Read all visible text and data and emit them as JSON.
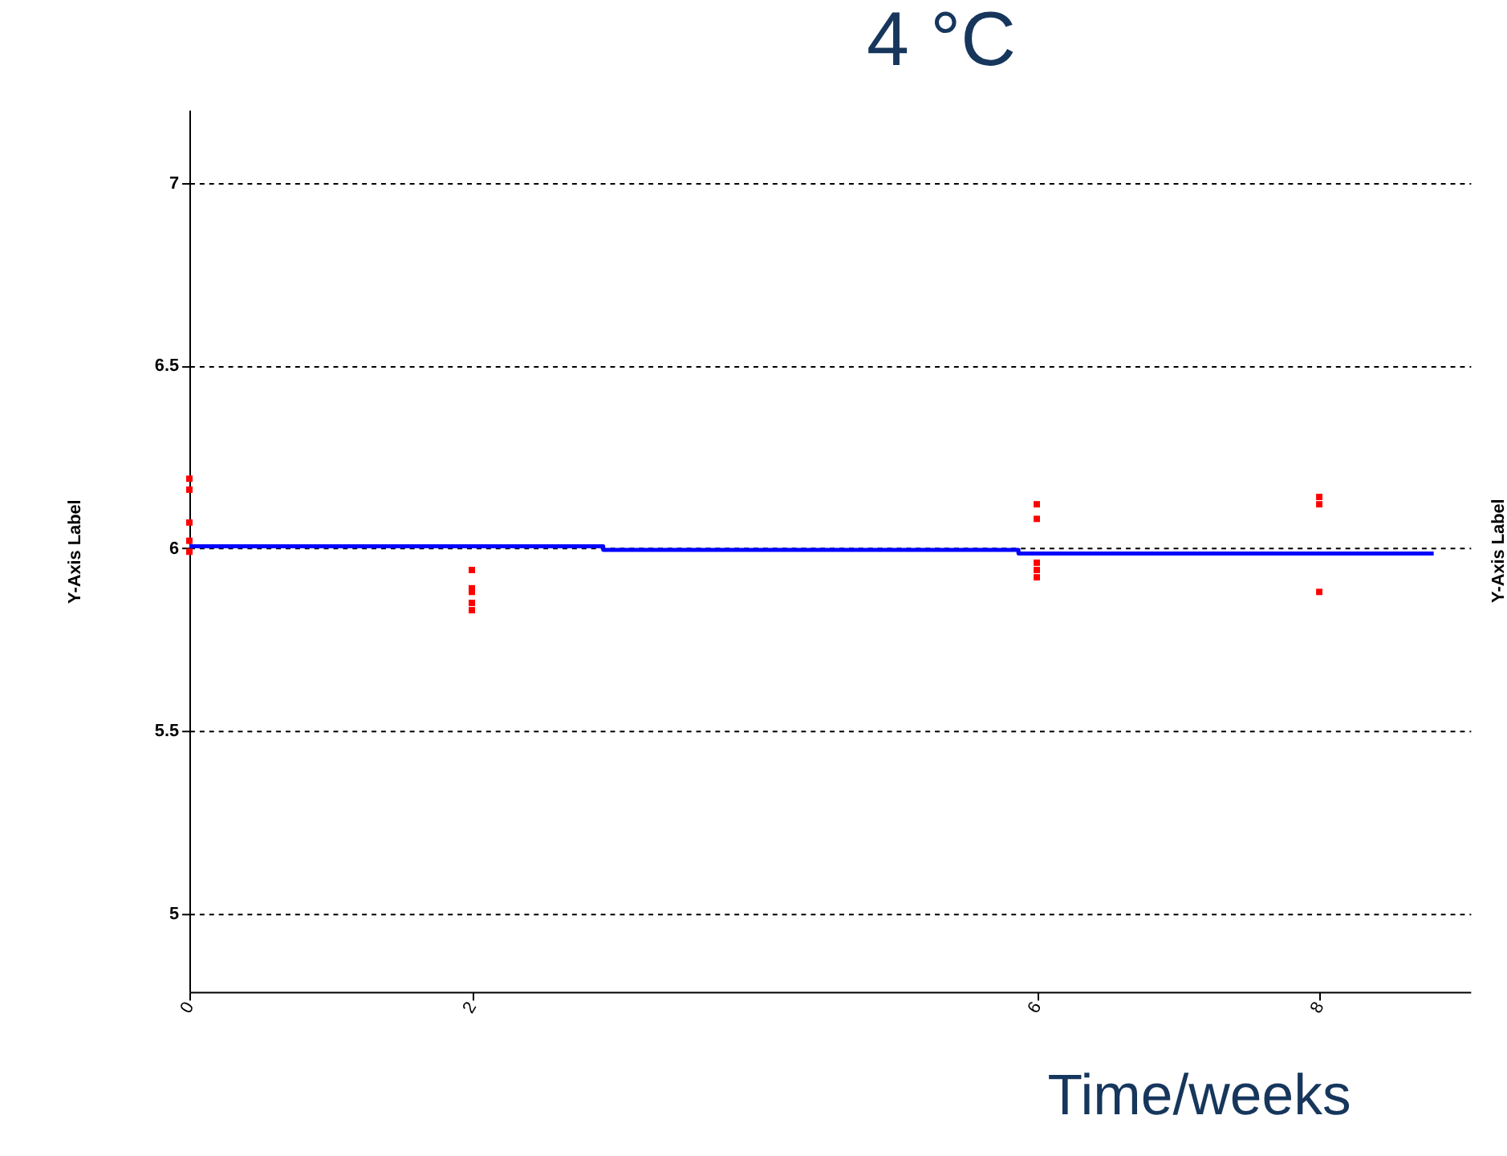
{
  "chart_data": {
    "type": "scatter",
    "title": "4 °C",
    "xlabel": "Time/weeks",
    "ylabel": "Y-Axis Label",
    "y2label": "Y-Axis Label",
    "xlim": [
      0,
      9.07
    ],
    "xticks": [
      0,
      2,
      6,
      8
    ],
    "ylim": [
      4.785,
      7.2
    ],
    "yticks": [
      5,
      5.5,
      6,
      6.5,
      7
    ],
    "grid": "y",
    "marker": "square",
    "series": [
      {
        "color": "#ff0000",
        "x": [
          0,
          0,
          0,
          0,
          0,
          2,
          2,
          2,
          2,
          2,
          6,
          6,
          6,
          6,
          6,
          8,
          8,
          8
        ],
        "values": [
          6.19,
          6.16,
          6.07,
          6.02,
          5.99,
          5.94,
          5.89,
          5.88,
          5.85,
          5.83,
          6.12,
          6.08,
          5.96,
          5.94,
          5.92,
          6.14,
          6.12,
          5.88
        ]
      },
      {
        "type": "step",
        "color": "#0000ff",
        "line_style": "solid",
        "x": [
          0,
          2.93,
          5.87,
          8.81
        ],
        "values": [
          6.005,
          5.995,
          5.985,
          5.985
        ],
        "marker": "none"
      }
    ]
  }
}
